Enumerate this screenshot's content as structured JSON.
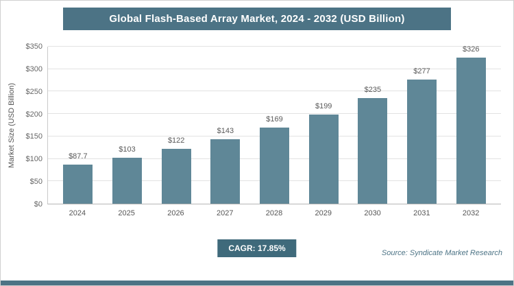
{
  "header": {
    "title": "Global Flash-Based Array Market, 2024 - 2032 (USD Billion)"
  },
  "chart_data": {
    "type": "bar",
    "title": "Global Flash-Based Array Market, 2024 - 2032 (USD Billion)",
    "categories": [
      "2024",
      "2025",
      "2026",
      "2027",
      "2028",
      "2029",
      "2030",
      "2031",
      "2032"
    ],
    "values": [
      87.7,
      103,
      122,
      143,
      169,
      199,
      235,
      277,
      326
    ],
    "value_labels": [
      "$87.7",
      "$103",
      "$122",
      "$143",
      "$169",
      "$199",
      "$235",
      "$277",
      "$326"
    ],
    "xlabel": "",
    "ylabel": "Market Size (USD Billion)",
    "ylim": [
      0,
      350
    ],
    "ytick_step": 50,
    "ytick_labels": [
      "$0",
      "$50",
      "$100",
      "$150",
      "$200",
      "$250",
      "$300",
      "$350"
    ],
    "grid": true,
    "legend": "none",
    "bar_color": "#5f8797"
  },
  "footer": {
    "cagr_label": "CAGR: 17.85%",
    "source": "Source: Syndicate Market Research"
  },
  "colors": {
    "header_bg": "#4c7385",
    "badge_bg": "#3f6a7b",
    "bar": "#5f8797",
    "accent_strip": "#4c7385",
    "gridline": "#e2e2e2"
  }
}
